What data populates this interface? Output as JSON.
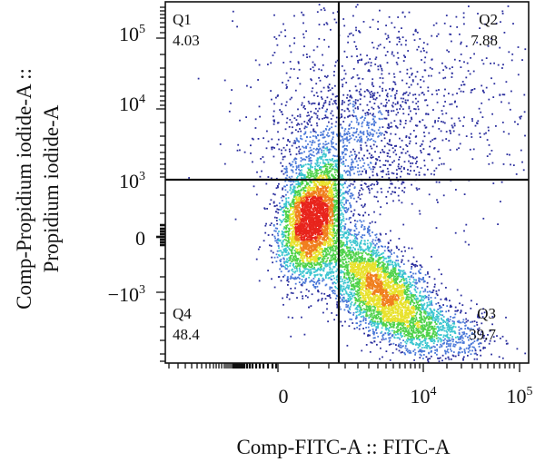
{
  "chart_data": {
    "type": "scatter",
    "title": "",
    "xlabel": "Comp-FITC-A :: FITC-A",
    "ylabel_line1": "Comp-Propidium iodide-A ::",
    "ylabel_line2": "Propidium iodide-A",
    "x_scale": "biexponential",
    "y_scale": "biexponential",
    "x_ticks": [
      {
        "base": "0",
        "exp": ""
      },
      {
        "base": "10",
        "exp": "4"
      },
      {
        "base": "10",
        "exp": "5"
      }
    ],
    "y_ticks": [
      {
        "base": "10",
        "exp": "5"
      },
      {
        "base": "10",
        "exp": "4"
      },
      {
        "base": "10",
        "exp": "3"
      },
      {
        "base": "0",
        "exp": ""
      },
      {
        "base": "−10",
        "exp": "3"
      }
    ],
    "quadrants": [
      {
        "name": "Q1",
        "value": "4.03"
      },
      {
        "name": "Q2",
        "value": "7.88"
      },
      {
        "name": "Q3",
        "value": "39.7"
      },
      {
        "name": "Q4",
        "value": "48.4"
      }
    ],
    "density_colors": [
      "#2b2f9e",
      "#4a78d8",
      "#3cc6d0",
      "#4fd24a",
      "#e8e22c",
      "#f07f1e",
      "#e8241c"
    ]
  }
}
